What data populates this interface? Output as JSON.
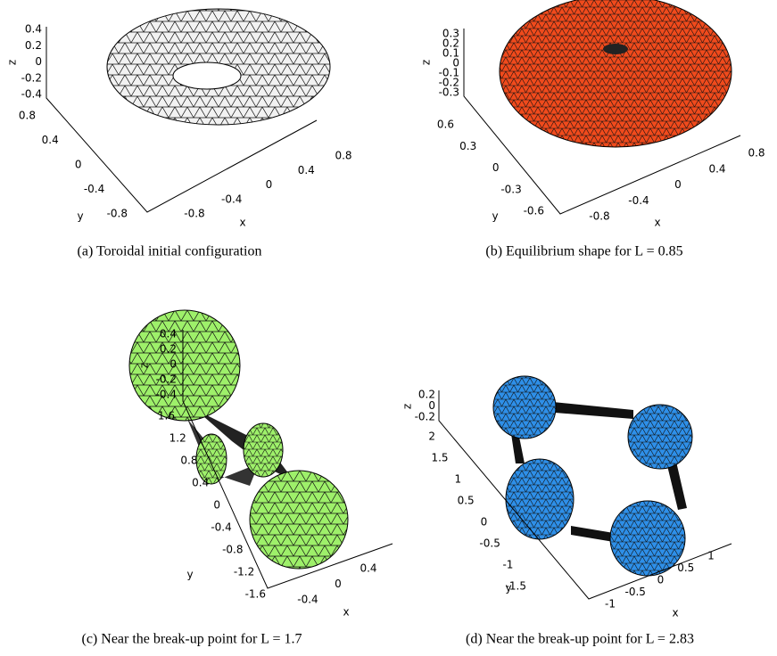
{
  "panels": [
    {
      "caption": "(a) Toroidal initial configuration",
      "axes": {
        "z_label": "z",
        "y_label": "y",
        "x_label": "x",
        "z_ticks": [
          "0.4",
          "0.2",
          "0",
          "-0.2",
          "-0.4"
        ],
        "y_ticks": [
          "0.8",
          "0.4",
          "0",
          "-0.4",
          "-0.8"
        ],
        "x_ticks": [
          "-0.8",
          "-0.4",
          "0",
          "0.4",
          "0.8"
        ]
      }
    },
    {
      "caption": "(b) Equilibrium shape for L = 0.85",
      "axes": {
        "z_label": "z",
        "y_label": "y",
        "x_label": "x",
        "z_ticks": [
          "0.3",
          "0.2",
          "0.1",
          "0",
          "-0.1",
          "-0.2",
          "-0.3"
        ],
        "y_ticks": [
          "0.6",
          "0.3",
          "0",
          "-0.3",
          "-0.6"
        ],
        "x_ticks": [
          "-0.8",
          "-0.4",
          "0",
          "0.4",
          "0.8"
        ]
      }
    },
    {
      "caption": "(c) Near the break-up point for L = 1.7",
      "axes": {
        "z_label": "z",
        "y_label": "y",
        "x_label": "x",
        "z_ticks": [
          "0.4",
          "0.2",
          "0",
          "-0.2",
          "-0.4"
        ],
        "y_ticks": [
          "1.6",
          "1.2",
          "0.8",
          "0.4",
          "0",
          "-0.4",
          "-0.8",
          "-1.2",
          "-1.6"
        ],
        "x_ticks": [
          "-0.4",
          "0",
          "0.4"
        ]
      }
    },
    {
      "caption": "(d) Near the break-up point for L = 2.83",
      "axes": {
        "z_label": "z",
        "y_label": "y",
        "x_label": "x",
        "z_ticks": [
          "0.2",
          "0",
          "-0.2"
        ],
        "y_ticks": [
          "2",
          "1.5",
          "1",
          "0.5",
          "0",
          "-0.5",
          "-1",
          "-1.5"
        ],
        "x_ticks": [
          "-1",
          "-0.5",
          "0",
          "0.5",
          "1"
        ]
      }
    }
  ]
}
